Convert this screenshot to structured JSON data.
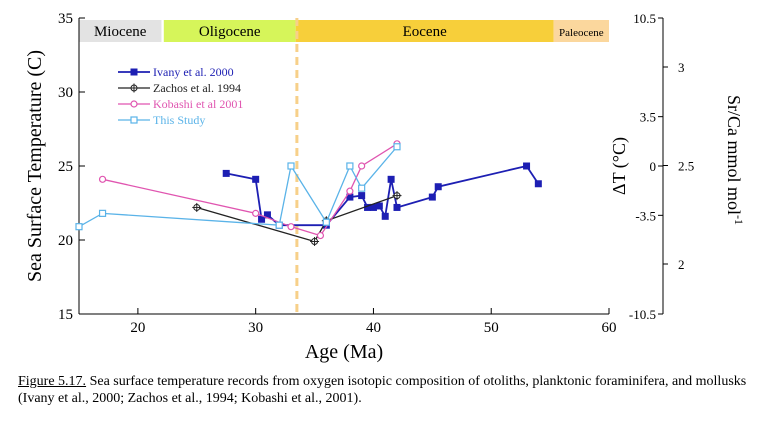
{
  "chart_data": {
    "type": "line",
    "xlabel": "Age (Ma)",
    "ylabel": "Sea Surface Temperature (C)",
    "y2label": "ΔT (°C)",
    "y3label": "Sr/Ca mmol mol",
    "y3label_sup": "-1",
    "xlim": [
      15,
      60
    ],
    "ylim": [
      15,
      35
    ],
    "xticks": [
      "20",
      "30",
      "40",
      "50",
      "60"
    ],
    "yticks": [
      "15",
      "20",
      "25",
      "30",
      "35"
    ],
    "y2ticks": [
      "10.5",
      "3.5",
      "0",
      "-3.5",
      "-10.5"
    ],
    "y3ticks": [
      "3",
      "2.5",
      "2"
    ],
    "grid": false,
    "legend": "top-left",
    "epochs": [
      {
        "name": "Miocene",
        "start": 15,
        "end": 22,
        "color": "#e3e3e3",
        "small": false
      },
      {
        "name": "Oligocene",
        "start": 22.2,
        "end": 33.4,
        "color": "#d6f55a",
        "small": false
      },
      {
        "name": "Eocene",
        "start": 33.4,
        "end": 55.3,
        "color": "#f7cf3a",
        "small": false
      },
      {
        "name": "Paleocene",
        "start": 55.3,
        "end": 60,
        "color": "#fbd79d",
        "small": true
      }
    ],
    "boundary": {
      "x": 33.5,
      "color": "#f7d089"
    },
    "series": [
      {
        "name": "Ivany et al. 2000",
        "color": "#1d1fb3",
        "marker": "square-filled",
        "x": [
          27.5,
          30,
          30.5,
          31,
          32,
          36,
          38,
          39,
          39.5,
          40,
          40.5,
          41,
          41.5,
          42,
          45,
          45.5,
          53,
          54
        ],
        "y": [
          24.5,
          24.1,
          21.4,
          21.7,
          21.0,
          21.0,
          22.9,
          23.0,
          22.2,
          22.2,
          22.3,
          21.6,
          24.1,
          22.2,
          22.9,
          23.6,
          25.0,
          23.8
        ]
      },
      {
        "name": "Zachos et al. 1994",
        "color": "#222222",
        "marker": "cross-circle",
        "x": [
          25,
          35,
          36,
          42
        ],
        "y": [
          22.2,
          19.9,
          21.3,
          23.0
        ]
      },
      {
        "name": "Kobashi et al 2001",
        "color": "#e055b0",
        "marker": "circle-open",
        "x": [
          17,
          30,
          33,
          35.5,
          38,
          39,
          42
        ],
        "y": [
          24.1,
          21.8,
          20.9,
          20.3,
          23.3,
          25.0,
          26.5
        ]
      },
      {
        "name": "This Study",
        "color": "#5ab3e8",
        "marker": "square-open",
        "x": [
          15,
          17,
          32,
          33,
          36,
          38,
          39,
          42
        ],
        "y": [
          20.9,
          21.8,
          21.0,
          25.0,
          21.2,
          25.0,
          23.5,
          26.3
        ]
      }
    ]
  },
  "caption": {
    "label": "Figure 5.17.",
    "text": " Sea surface temperature records from oxygen isotopic composition of otoliths, planktonic foraminifera, and mollusks (Ivany et al., 2000; Zachos et al., 1994; Kobashi et al., 2001)."
  }
}
